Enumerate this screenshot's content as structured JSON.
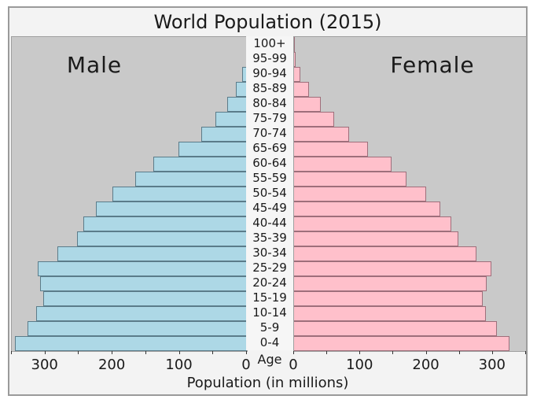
{
  "title": "World Population (2015)",
  "panel_labels": {
    "male": "Male",
    "female": "Female"
  },
  "axis": {
    "xlabel": "Population (in millions)",
    "age_axis_label": "Age",
    "x_major_ticks": [
      0,
      100,
      200,
      300
    ],
    "x_minor_tick_step": 50,
    "xlim": [
      0,
      350
    ]
  },
  "colors": {
    "figure_background": "#f3f3f3",
    "panel_background": "#c9c9c9",
    "male_fill": "#add8e6",
    "male_edge": "#5b7c8a",
    "female_fill": "#ffc0cb",
    "female_edge": "#9e6f7b",
    "figure_border": "#9a9a9a",
    "text": "#1a1a1a"
  },
  "chart_data": {
    "type": "bar",
    "subtype": "population-pyramid",
    "title": "World Population (2015)",
    "xlabel": "Population (in millions)",
    "ylabel": "Age",
    "units": "millions of people",
    "xlim": [
      0,
      350
    ],
    "x_major_ticks": [
      0,
      100,
      200,
      300
    ],
    "x_minor_tick_step": 50,
    "grid": false,
    "legend_position": "in-panel-text",
    "categories": [
      "0-4",
      "5-9",
      "10-14",
      "15-19",
      "20-24",
      "25-29",
      "30-34",
      "35-39",
      "40-44",
      "45-49",
      "50-54",
      "55-59",
      "60-64",
      "65-69",
      "70-74",
      "75-79",
      "80-84",
      "85-89",
      "90-94",
      "95-99",
      "100+"
    ],
    "series": [
      {
        "name": "Male",
        "side": "left",
        "values": [
          347,
          328,
          315,
          304,
          309,
          313,
          283,
          254,
          245,
          226,
          201,
          167,
          140,
          103,
          69,
          48,
          30,
          17,
          8,
          2,
          0.5
        ]
      },
      {
        "name": "Female",
        "side": "right",
        "values": [
          326,
          307,
          291,
          286,
          292,
          299,
          277,
          249,
          239,
          222,
          200,
          171,
          148,
          113,
          84,
          62,
          42,
          24,
          11,
          3,
          1
        ]
      }
    ]
  }
}
